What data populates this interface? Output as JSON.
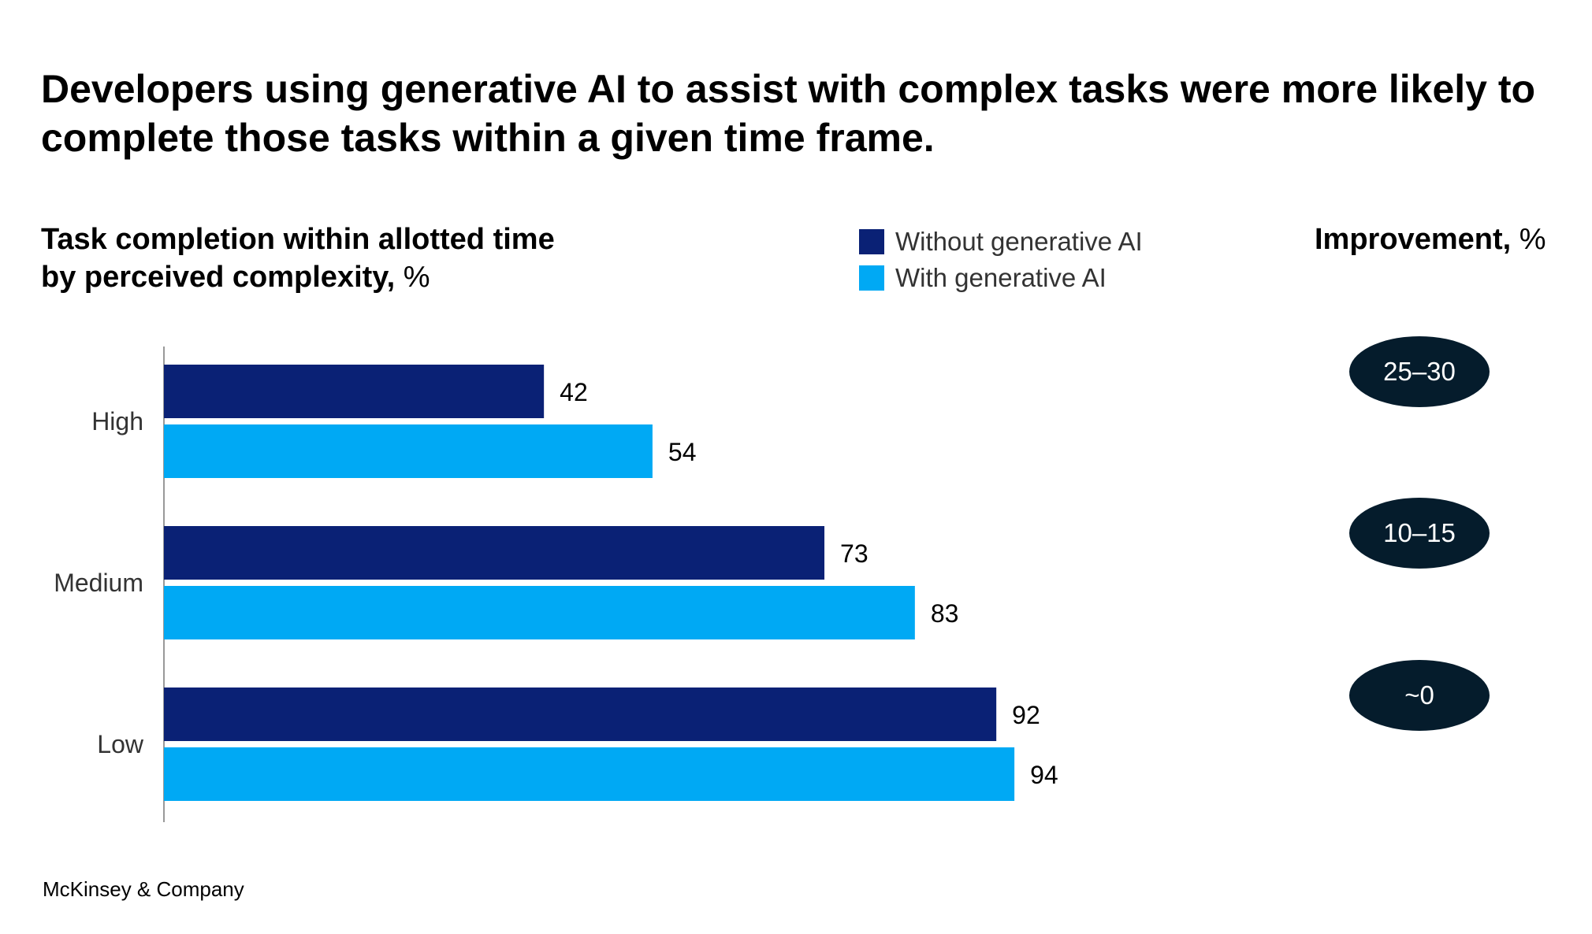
{
  "headline": "Developers using generative AI to assist with complex tasks were more likely to complete those tasks within a given time frame.",
  "subtitle": {
    "line1": "Task completion within allotted time",
    "line2_bold": "by perceived complexity,",
    "line2_unit": " %"
  },
  "legend": [
    {
      "label": "Without generative AI",
      "color": "#0a2175"
    },
    {
      "label": "With generative AI",
      "color": "#00a9f4"
    }
  ],
  "improvement": {
    "title_bold": "Improvement,",
    "title_unit": " %",
    "values": [
      "25–30",
      "10–15",
      "~0"
    ],
    "pill_color": "#051c2c"
  },
  "chart_data": {
    "type": "bar",
    "orientation": "horizontal",
    "categories": [
      "High",
      "Medium",
      "Low"
    ],
    "series": [
      {
        "name": "Without generative AI",
        "values": [
          42,
          73,
          92
        ],
        "color": "#0a2175"
      },
      {
        "name": "With generative AI",
        "values": [
          54,
          83,
          94
        ],
        "color": "#00a9f4"
      }
    ],
    "data_labels": true,
    "grid": false
  },
  "source": "McKinsey & Company"
}
